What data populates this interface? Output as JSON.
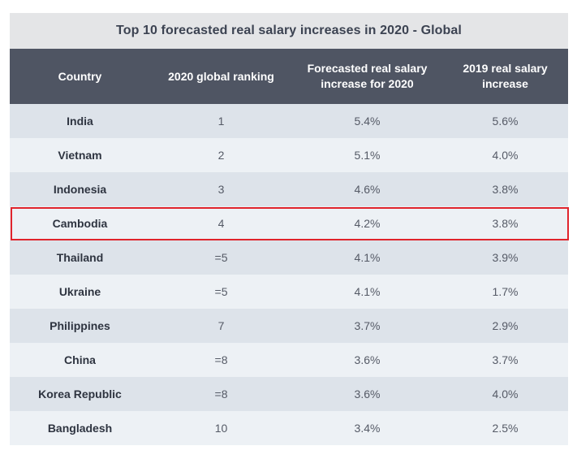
{
  "chart_data": {
    "type": "table",
    "title": "Top 10 forecasted real salary increases in 2020 - Global",
    "columns": [
      "Country",
      "2020 global ranking",
      "Forecasted real salary increase for 2020",
      "2019 real salary increase"
    ],
    "rows": [
      {
        "country": "India",
        "ranking": "1",
        "forecast_2020": "5.4%",
        "actual_2019": "5.6%"
      },
      {
        "country": "Vietnam",
        "ranking": "2",
        "forecast_2020": "5.1%",
        "actual_2019": "4.0%"
      },
      {
        "country": "Indonesia",
        "ranking": "3",
        "forecast_2020": "4.6%",
        "actual_2019": "3.8%"
      },
      {
        "country": "Cambodia",
        "ranking": "4",
        "forecast_2020": "4.2%",
        "actual_2019": "3.8%"
      },
      {
        "country": "Thailand",
        "ranking": "=5",
        "forecast_2020": "4.1%",
        "actual_2019": "3.9%"
      },
      {
        "country": "Ukraine",
        "ranking": "=5",
        "forecast_2020": "4.1%",
        "actual_2019": "1.7%"
      },
      {
        "country": "Philippines",
        "ranking": "7",
        "forecast_2020": "3.7%",
        "actual_2019": "2.9%"
      },
      {
        "country": "China",
        "ranking": "=8",
        "forecast_2020": "3.6%",
        "actual_2019": "3.7%"
      },
      {
        "country": "Korea Republic",
        "ranking": "=8",
        "forecast_2020": "3.6%",
        "actual_2019": "4.0%"
      },
      {
        "country": "Bangladesh",
        "ranking": "10",
        "forecast_2020": "3.4%",
        "actual_2019": "2.5%"
      }
    ],
    "highlighted_row": "Cambodia"
  },
  "colors": {
    "title_background": "#e4e5e7",
    "header_background": "#4f5563",
    "row_odd": "#dde3ea",
    "row_even": "#edf1f5",
    "highlight_border": "#e0242c"
  }
}
